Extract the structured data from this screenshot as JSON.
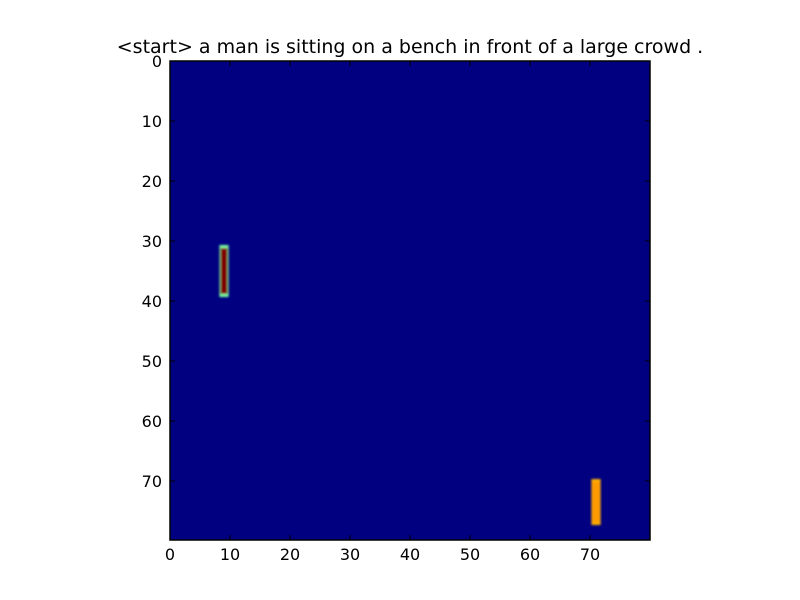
{
  "chart_data": {
    "type": "heatmap",
    "title": "<start> a man is sitting on a bench in front of a large crowd .",
    "xlabel": "",
    "ylabel": "",
    "xlim": [
      0,
      80
    ],
    "ylim": [
      80,
      0
    ],
    "x_ticks": [
      0,
      10,
      20,
      30,
      40,
      50,
      60,
      70
    ],
    "y_ticks": [
      0,
      10,
      20,
      30,
      40,
      50,
      60,
      70
    ],
    "grid": false,
    "background_color": "#000080",
    "colormap": "jet",
    "hotspots": [
      {
        "x": 9,
        "y_from": 31,
        "y_to": 39,
        "value": "max",
        "color": "#7f0000",
        "edge_color": "#7cffa0"
      },
      {
        "x": 71,
        "y_from": 70,
        "y_to": 77,
        "value": "high",
        "color": "#ff9900",
        "edge_color": "#ffb000"
      }
    ]
  }
}
